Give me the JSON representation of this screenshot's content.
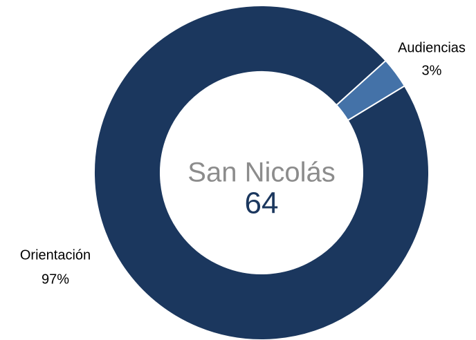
{
  "chart_data": {
    "type": "donut",
    "categories": [
      "Orientación",
      "Audiencias"
    ],
    "values": [
      97,
      3
    ],
    "value_labels": [
      "97%",
      "3%"
    ],
    "colors": [
      "#1b375e",
      "#4472a8"
    ],
    "center_title": "San Nicolás",
    "center_value": 64
  }
}
